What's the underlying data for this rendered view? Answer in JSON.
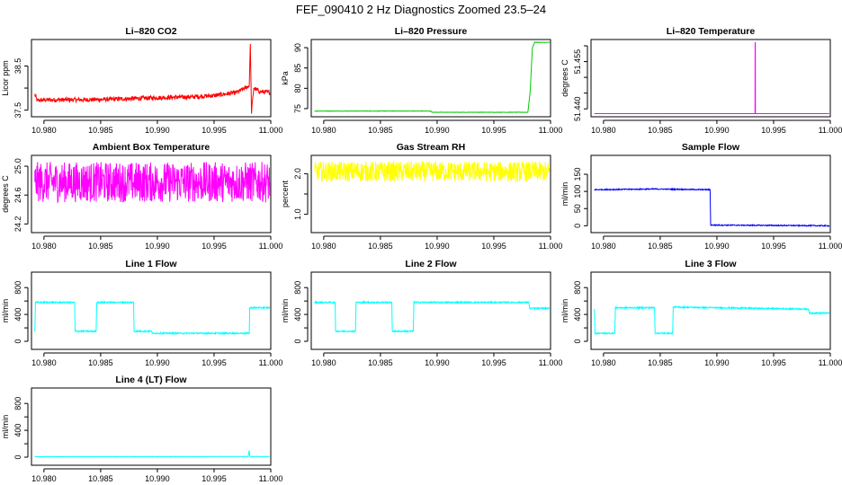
{
  "title": "FEF_090410  2 Hz Diagnostics Zoomed 23.5–24",
  "chart_data": [
    {
      "type": "line",
      "title": "Li–820 CO2",
      "ylabel": "Licor ppm",
      "color": "#ff0000",
      "xlim": [
        10.9789,
        11.0
      ],
      "ylim": [
        37.35,
        39.1
      ],
      "xticks": [
        "10.980",
        "10.985",
        "10.990",
        "10.995",
        "11.000"
      ],
      "yticks": [
        "37.5",
        "38.0",
        "38.5"
      ],
      "ytick_values": [
        37.5,
        38.0,
        38.5
      ],
      "ytick_labeled": [
        true,
        false,
        true
      ],
      "series": [
        {
          "x": [
            10.9792,
            10.9794,
            10.98,
            10.985,
            10.99,
            10.993,
            10.995,
            10.997,
            10.9981,
            10.9982,
            10.9983,
            10.9985,
            10.999,
            10.9999
          ],
          "values": [
            37.85,
            37.72,
            37.73,
            37.74,
            37.78,
            37.8,
            37.83,
            37.9,
            38.05,
            39.0,
            37.45,
            38.0,
            37.92,
            37.9
          ],
          "noise": 0.05
        }
      ]
    },
    {
      "type": "line",
      "title": "Li–820 Pressure",
      "ylabel": "kPa",
      "color": "#00cc00",
      "xlim": [
        10.9789,
        11.0
      ],
      "ylim": [
        73.0,
        92.0
      ],
      "xticks": [
        "10.980",
        "10.985",
        "10.990",
        "10.995",
        "11.000"
      ],
      "yticks": [
        "75",
        "80",
        "85",
        "90"
      ],
      "ytick_values": [
        75,
        80,
        85,
        90
      ],
      "ytick_labeled": [
        true,
        true,
        true,
        true
      ],
      "series": [
        {
          "x": [
            10.9792,
            10.9894,
            10.9896,
            10.998,
            10.9982,
            10.9984,
            10.9986,
            10.9999
          ],
          "values": [
            74.4,
            74.4,
            74.1,
            74.1,
            79,
            90,
            91.3,
            91.3
          ],
          "noise": 0.05
        }
      ]
    },
    {
      "type": "line",
      "title": "Li–820 Temperature",
      "ylabel": "degrees C",
      "color": "#ff00ff",
      "xlim": [
        10.9789,
        11.0
      ],
      "ylim": [
        51.4375,
        51.462
      ],
      "xticks": [
        "10.980",
        "10.985",
        "10.990",
        "10.995",
        "11.000"
      ],
      "yticks": [
        "51.440",
        "51.445",
        "51.450",
        "51.455",
        "51.460"
      ],
      "ytick_values": [
        51.44,
        51.445,
        51.45,
        51.455,
        51.46
      ],
      "ytick_labeled": [
        true,
        false,
        false,
        true,
        false
      ],
      "series": [
        {
          "x": [
            10.9792,
            10.99336,
            10.99337,
            10.99339,
            10.9934,
            10.9999
          ],
          "values": [
            51.4385,
            51.4385,
            51.461,
            51.461,
            51.4385,
            51.4385
          ],
          "noise": 0
        }
      ]
    },
    {
      "type": "line",
      "title": "Ambient Box Temperature",
      "ylabel": "degrees C",
      "color": "#ff00ff",
      "xlim": [
        10.9789,
        11.0
      ],
      "ylim": [
        24.08,
        25.15
      ],
      "xticks": [
        "10.980",
        "10.985",
        "10.990",
        "10.995",
        "11.000"
      ],
      "yticks": [
        "24.2",
        "24.6",
        "25.0"
      ],
      "ytick_values": [
        24.2,
        24.6,
        25.0
      ],
      "ytick_labeled": [
        true,
        true,
        true
      ],
      "series": [
        {
          "x": [
            10.9792,
            10.9999
          ],
          "values": [
            24.78,
            24.78
          ],
          "noise": 0.28
        }
      ]
    },
    {
      "type": "line",
      "title": "Gas Stream RH",
      "ylabel": "percent",
      "color": "#ffff00",
      "xlim": [
        10.9789,
        11.0
      ],
      "ylim": [
        0.55,
        2.45
      ],
      "xticks": [
        "10.980",
        "10.985",
        "10.990",
        "10.995",
        "11.000"
      ],
      "yticks": [
        "1.0",
        "1.5",
        "2.0"
      ],
      "ytick_values": [
        1.0,
        1.5,
        2.0
      ],
      "ytick_labeled": [
        true,
        false,
        true
      ],
      "series": [
        {
          "x": [
            10.9792,
            10.9999
          ],
          "values": [
            2.05,
            2.05
          ],
          "noise": 0.25
        }
      ]
    },
    {
      "type": "line",
      "title": "Sample Flow",
      "ylabel": "ml/min",
      "color": "#0000ff",
      "xlim": [
        10.9789,
        11.0
      ],
      "ylim": [
        -20,
        205
      ],
      "xticks": [
        "10.980",
        "10.985",
        "10.990",
        "10.995",
        "11.000"
      ],
      "yticks": [
        "0",
        "50",
        "100",
        "150"
      ],
      "ytick_values": [
        0,
        50,
        100,
        150
      ],
      "ytick_labeled": [
        true,
        true,
        true,
        true
      ],
      "series": [
        {
          "x": [
            10.9792,
            10.9845,
            10.9894,
            10.98945,
            10.9999
          ],
          "values": [
            105,
            107,
            105,
            2,
            0
          ],
          "noise": 1.5
        }
      ]
    },
    {
      "type": "line",
      "title": "Line 1 Flow",
      "ylabel": "ml/min",
      "color": "#00ffff",
      "xlim": [
        10.9789,
        11.0
      ],
      "ylim": [
        -120,
        1030
      ],
      "xticks": [
        "10.980",
        "10.985",
        "10.990",
        "10.995",
        "11.000"
      ],
      "yticks": [
        "0",
        "200",
        "400",
        "600",
        "800"
      ],
      "ytick_values": [
        0,
        200,
        400,
        600,
        800
      ],
      "ytick_labeled": [
        true,
        false,
        true,
        false,
        true
      ],
      "series": [
        {
          "x": [
            10.9792,
            10.97925,
            10.9827,
            10.98275,
            10.9846,
            10.98465,
            10.9879,
            10.98795,
            10.9895,
            10.98955,
            10.9981,
            10.99815,
            10.9999
          ],
          "values": [
            150,
            580,
            580,
            150,
            150,
            580,
            580,
            150,
            150,
            120,
            120,
            500,
            500
          ],
          "noise": 10
        }
      ]
    },
    {
      "type": "line",
      "title": "Line 2 Flow",
      "ylabel": "ml/min",
      "color": "#00ffff",
      "xlim": [
        10.9789,
        11.0
      ],
      "ylim": [
        -120,
        1030
      ],
      "xticks": [
        "10.980",
        "10.985",
        "10.990",
        "10.995",
        "11.000"
      ],
      "yticks": [
        "0",
        "200",
        "400",
        "600",
        "800"
      ],
      "ytick_values": [
        0,
        200,
        400,
        600,
        800
      ],
      "ytick_labeled": [
        true,
        false,
        true,
        false,
        true
      ],
      "series": [
        {
          "x": [
            10.9792,
            10.981,
            10.98105,
            10.9828,
            10.98285,
            10.986,
            10.98605,
            10.9879,
            10.98795,
            10.9981,
            10.99815,
            10.9999
          ],
          "values": [
            580,
            580,
            150,
            150,
            580,
            580,
            150,
            150,
            580,
            580,
            490,
            490
          ],
          "noise": 10
        }
      ]
    },
    {
      "type": "line",
      "title": "Line 3 Flow",
      "ylabel": "ml/min",
      "color": "#00ffff",
      "xlim": [
        10.9789,
        11.0
      ],
      "ylim": [
        -120,
        1030
      ],
      "xticks": [
        "10.980",
        "10.985",
        "10.990",
        "10.995",
        "11.000"
      ],
      "yticks": [
        "0",
        "200",
        "400",
        "600",
        "800"
      ],
      "ytick_values": [
        0,
        200,
        400,
        600,
        800
      ],
      "ytick_labeled": [
        true,
        false,
        true,
        false,
        true
      ],
      "series": [
        {
          "x": [
            10.9792,
            10.97925,
            10.981,
            10.98105,
            10.9845,
            10.98455,
            10.9861,
            10.98615,
            10.9981,
            10.99815,
            10.9999
          ],
          "values": [
            480,
            120,
            120,
            500,
            500,
            120,
            120,
            510,
            480,
            420,
            420
          ],
          "noise": 10
        }
      ]
    },
    {
      "type": "line",
      "title": "Line 4 (LT) Flow",
      "ylabel": "ml/min",
      "color": "#00ffff",
      "xlim": [
        10.9789,
        11.0
      ],
      "ylim": [
        -120,
        1030
      ],
      "xticks": [
        "10.980",
        "10.985",
        "10.990",
        "10.995",
        "11.000"
      ],
      "yticks": [
        "0",
        "200",
        "400",
        "600",
        "800"
      ],
      "ytick_values": [
        0,
        200,
        400,
        600,
        800
      ],
      "ytick_labeled": [
        true,
        false,
        true,
        false,
        true
      ],
      "series": [
        {
          "x": [
            10.9792,
            10.998,
            10.9981,
            10.99815,
            10.9982,
            10.9999
          ],
          "values": [
            8,
            10,
            100,
            20,
            10,
            10
          ],
          "noise": 2
        }
      ]
    }
  ]
}
